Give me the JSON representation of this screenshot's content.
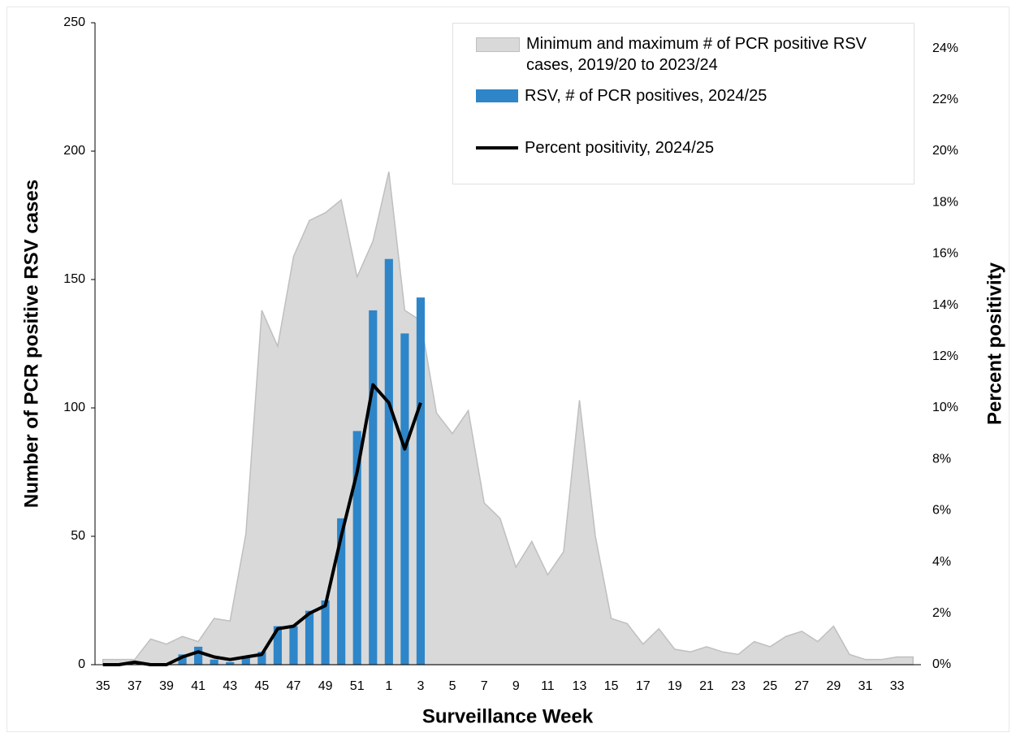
{
  "chart_data": {
    "type": "bar",
    "x_label": "Surveillance Week",
    "y_label": "Number of PCR positive RSV cases",
    "y2_label": "Percent positivity",
    "categories": [
      "35",
      null,
      "37",
      null,
      "39",
      null,
      "41",
      null,
      "43",
      null,
      "45",
      null,
      "47",
      null,
      "49",
      null,
      "51",
      null,
      "1",
      null,
      "3",
      null,
      "5",
      null,
      "7",
      null,
      "9",
      null,
      "11",
      null,
      "13",
      null,
      "15",
      null,
      "17",
      null,
      "19",
      null,
      "21",
      null,
      "23",
      null,
      "25",
      null,
      "27",
      null,
      "29",
      null,
      "31",
      null,
      "33",
      null
    ],
    "ylim": [
      0,
      250
    ],
    "yticks": [
      0,
      50,
      100,
      150,
      200,
      250
    ],
    "y2lim": [
      0,
      25
    ],
    "y2ticks": [
      {
        "value": 0,
        "label": "0%"
      },
      {
        "value": 2,
        "label": "2%"
      },
      {
        "value": 4,
        "label": "4%"
      },
      {
        "value": 6,
        "label": "6%"
      },
      {
        "value": 8,
        "label": "8%"
      },
      {
        "value": 10,
        "label": "10%"
      },
      {
        "value": 12,
        "label": "12%"
      },
      {
        "value": 14,
        "label": "14%"
      },
      {
        "value": 16,
        "label": "16%"
      },
      {
        "value": 18,
        "label": "18%"
      },
      {
        "value": 20,
        "label": "20%"
      },
      {
        "value": 22,
        "label": "22%"
      },
      {
        "value": 24,
        "label": "24%"
      }
    ],
    "legend": "upper right",
    "series": [
      {
        "name": "Minimum and maximum # of PCR positive RSV cases, 2019/20 to 2023/24",
        "type": "area",
        "color": "#d9d9d9",
        "values": [
          2,
          2,
          2,
          10,
          8,
          11,
          9,
          18,
          17,
          51,
          138,
          124,
          159,
          173,
          176,
          181,
          151,
          165,
          192,
          138,
          134,
          98,
          90,
          99,
          63,
          57,
          38,
          48,
          35,
          44,
          103,
          50,
          18,
          16,
          8,
          14,
          6,
          5,
          7,
          5,
          4,
          9,
          7,
          11,
          13,
          9,
          15,
          4,
          2,
          2,
          3,
          3
        ]
      },
      {
        "name": "RSV, # of PCR positives, 2024/25",
        "type": "bar",
        "color": "#2e86c9",
        "values": [
          0,
          0,
          0,
          0,
          0,
          4,
          7,
          2,
          1,
          3,
          5,
          15,
          15,
          21,
          25,
          57,
          91,
          138,
          158,
          129,
          143,
          null,
          null,
          null,
          null,
          null,
          null,
          null,
          null,
          null,
          null,
          null,
          null,
          null,
          null,
          null,
          null,
          null,
          null,
          null,
          null,
          null,
          null,
          null,
          null,
          null,
          null,
          null,
          null,
          null,
          null,
          null
        ]
      },
      {
        "name": "Percent positivity, 2024/25",
        "type": "line",
        "color": "#000000",
        "axis": "y2",
        "values": [
          0,
          0,
          0.1,
          0,
          0,
          0.3,
          0.5,
          0.3,
          0.2,
          0.3,
          0.4,
          1.4,
          1.5,
          2.0,
          2.3,
          5.0,
          7.5,
          10.9,
          10.2,
          8.4,
          10.2,
          null,
          null,
          null,
          null,
          null,
          null,
          null,
          null,
          null,
          null,
          null,
          null,
          null,
          null,
          null,
          null,
          null,
          null,
          null,
          null,
          null,
          null,
          null,
          null,
          null,
          null,
          null,
          null,
          null,
          null,
          null
        ]
      }
    ]
  }
}
